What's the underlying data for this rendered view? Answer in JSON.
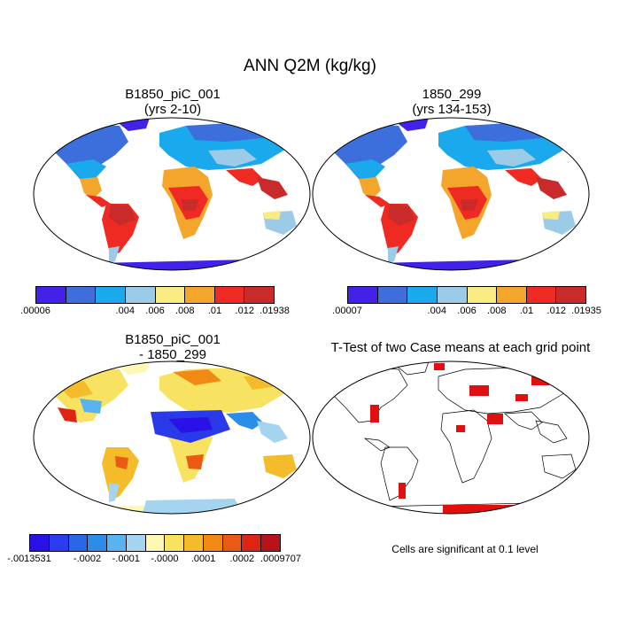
{
  "title": "ANN Q2M (kg/kg)",
  "panels": {
    "p1": {
      "line1": "B1850_piC_001",
      "line2": "(yrs 2-10)"
    },
    "p2": {
      "line1": "1850_299",
      "line2": "(yrs 134-153)"
    },
    "p3": {
      "line1": "B1850_piC_001",
      "line2": "- 1850_299"
    },
    "p4": {
      "line1": "T-Test of two Case means at each grid point"
    }
  },
  "colorbar1": {
    "colors": [
      "#4321e8",
      "#3d6fdc",
      "#1aa9ec",
      "#9ccbe8",
      "#f8ec82",
      "#f4a52c",
      "#ee2a22",
      "#c92a2a"
    ],
    "labels": [
      ".00006",
      ".004",
      ".006",
      ".008",
      ".01",
      ".012",
      ".01938"
    ]
  },
  "colorbar2": {
    "colors": [
      "#4321e8",
      "#3d6fdc",
      "#1aa9ec",
      "#9ccbe8",
      "#f8ec82",
      "#f4a52c",
      "#ee2a22",
      "#c92a2a"
    ],
    "labels": [
      ".00007",
      ".004",
      ".006",
      ".008",
      ".01",
      ".012",
      ".01935"
    ]
  },
  "colorbar3": {
    "colors": [
      "#2a12e6",
      "#2b3bf0",
      "#2a66e8",
      "#2a8ee8",
      "#58b4ee",
      "#a4d4ee",
      "#fdf8b4",
      "#f8e262",
      "#f4bc2a",
      "#f08a14",
      "#ea5a14",
      "#e02414",
      "#b8121a"
    ],
    "labels": [
      "-.0013531",
      "-.0002",
      "-.0001",
      "-.0000",
      ".0001",
      ".0002",
      ".0009707"
    ]
  },
  "significance_note": "Cells are significant at 0.1 level",
  "map_colors": {
    "ocean": "#ffffff",
    "arctic": "#4321e8",
    "polar": "#3d6fdc",
    "cool": "#1aa9ec",
    "mild": "#9ccbe8",
    "warm": "#f8ec82",
    "hot": "#f4a52c",
    "tropic": "#ee2a22",
    "equator": "#c92a2a",
    "diff_neg": "#2a3ae8",
    "diff_zero": "#fdf8b4",
    "diff_pos": "#f4bc2a",
    "signif": "#e01010"
  }
}
